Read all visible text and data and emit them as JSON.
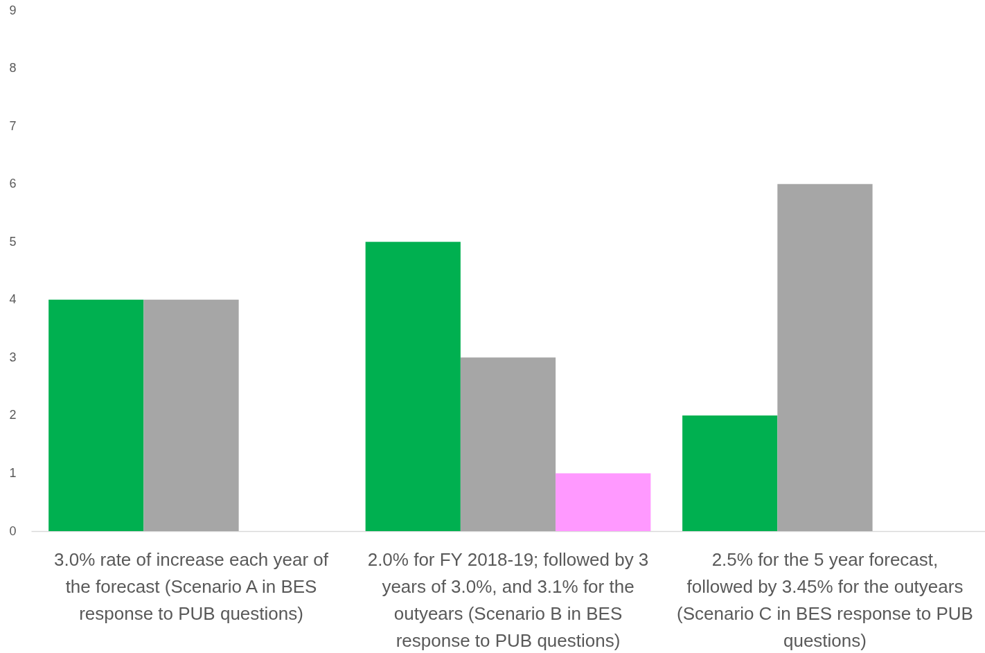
{
  "chart_data": {
    "type": "bar",
    "categories": [
      "3.0% rate of increase each year of the forecast (Scenario A in BES response to PUB questions)",
      "2.0% for FY 2018-19; followed by 3 years of 3.0%, and 3.1% for the outyears (Scenario B in BES response to PUB questions)",
      "2.5% for the 5 year forecast, followed by 3.45% for the outyears (Scenario C in BES response to PUB questions)"
    ],
    "series": [
      {
        "color": "#00b050",
        "values": [
          4,
          5,
          2
        ]
      },
      {
        "color": "#a6a6a6",
        "values": [
          4,
          3,
          6
        ]
      },
      {
        "color": "#ff99ff",
        "values": [
          null,
          1,
          null
        ]
      }
    ],
    "ylim": [
      0,
      9
    ],
    "yticks": [
      0,
      1,
      2,
      3,
      4,
      5,
      6,
      7,
      8,
      9
    ]
  }
}
